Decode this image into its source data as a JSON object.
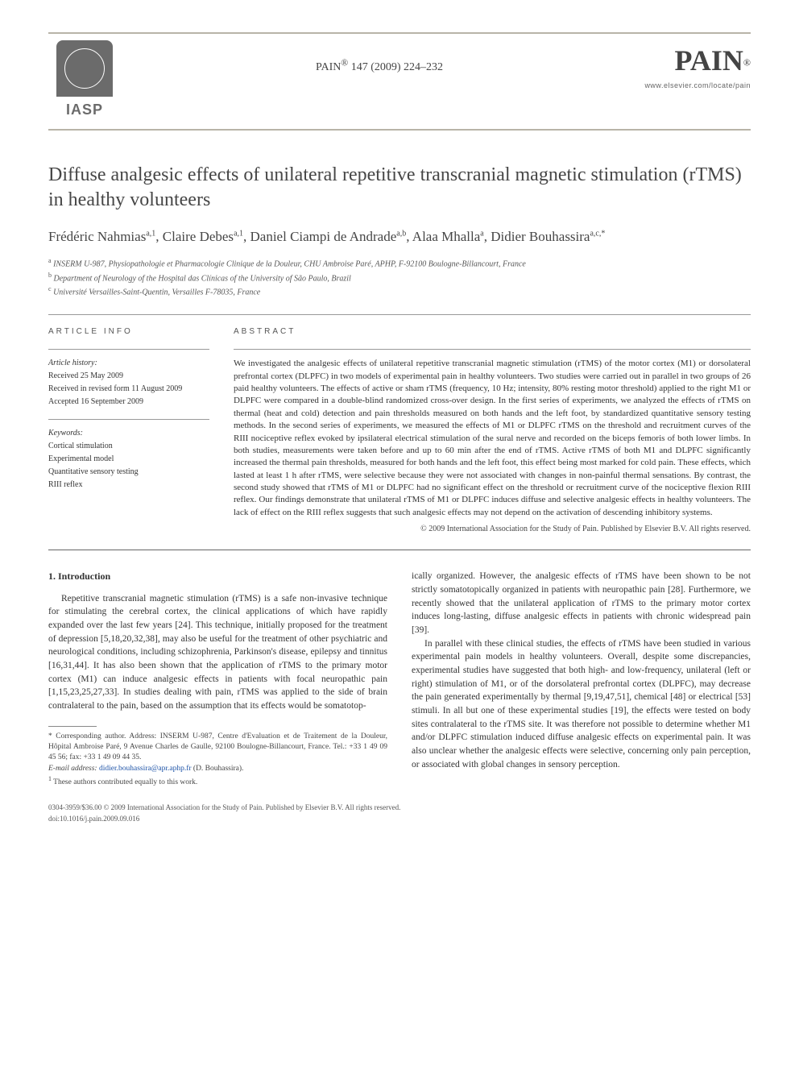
{
  "header": {
    "journal_ref_prefix": "PAIN",
    "journal_ref_reg": "®",
    "journal_ref_rest": " 147 (2009) 224–232",
    "iasp_label": "IASP",
    "pain_logo": "PAIN",
    "pain_reg": "®",
    "elsevier_url": "www.elsevier.com/locate/pain"
  },
  "title": "Diffuse analgesic effects of unilateral repetitive transcranial magnetic stimulation (rTMS) in healthy volunteers",
  "authors": [
    {
      "name": "Frédéric Nahmias",
      "sup": "a,1"
    },
    {
      "name": "Claire Debes",
      "sup": "a,1"
    },
    {
      "name": "Daniel Ciampi de Andrade",
      "sup": "a,b"
    },
    {
      "name": "Alaa Mhalla",
      "sup": "a"
    },
    {
      "name": "Didier Bouhassira",
      "sup": "a,c,*"
    }
  ],
  "affiliations": [
    {
      "sup": "a",
      "text": "INSERM U-987, Physiopathologie et Pharmacologie Clinique de la Douleur, CHU Ambroise Paré, APHP, F-92100 Boulogne-Billancourt, France"
    },
    {
      "sup": "b",
      "text": "Department of Neurology of the Hospital das Clínicas of the University of São Paulo, Brazil"
    },
    {
      "sup": "c",
      "text": "Université Versailles-Saint-Quentin, Versailles F-78035, France"
    }
  ],
  "article_info": {
    "heading": "ARTICLE INFO",
    "history_label": "Article history:",
    "history": [
      "Received 25 May 2009",
      "Received in revised form 11 August 2009",
      "Accepted 16 September 2009"
    ],
    "keywords_label": "Keywords:",
    "keywords": [
      "Cortical stimulation",
      "Experimental model",
      "Quantitative sensory testing",
      "RIII reflex"
    ]
  },
  "abstract": {
    "heading": "ABSTRACT",
    "text": "We investigated the analgesic effects of unilateral repetitive transcranial magnetic stimulation (rTMS) of the motor cortex (M1) or dorsolateral prefrontal cortex (DLPFC) in two models of experimental pain in healthy volunteers. Two studies were carried out in parallel in two groups of 26 paid healthy volunteers. The effects of active or sham rTMS (frequency, 10 Hz; intensity, 80% resting motor threshold) applied to the right M1 or DLPFC were compared in a double-blind randomized cross-over design. In the first series of experiments, we analyzed the effects of rTMS on thermal (heat and cold) detection and pain thresholds measured on both hands and the left foot, by standardized quantitative sensory testing methods. In the second series of experiments, we measured the effects of M1 or DLPFC rTMS on the threshold and recruitment curves of the RIII nociceptive reflex evoked by ipsilateral electrical stimulation of the sural nerve and recorded on the biceps femoris of both lower limbs. In both studies, measurements were taken before and up to 60 min after the end of rTMS. Active rTMS of both M1 and DLPFC significantly increased the thermal pain thresholds, measured for both hands and the left foot, this effect being most marked for cold pain. These effects, which lasted at least 1 h after rTMS, were selective because they were not associated with changes in non-painful thermal sensations. By contrast, the second study showed that rTMS of M1 or DLPFC had no significant effect on the threshold or recruitment curve of the nociceptive flexion RIII reflex. Our findings demonstrate that unilateral rTMS of M1 or DLPFC induces diffuse and selective analgesic effects in healthy volunteers. The lack of effect on the RIII reflex suggests that such analgesic effects may not depend on the activation of descending inhibitory systems.",
    "copyright": "© 2009 International Association for the Study of Pain. Published by Elsevier B.V. All rights reserved."
  },
  "body": {
    "section_number": "1.",
    "section_title": "Introduction",
    "col1_p1_a": "Repetitive transcranial magnetic stimulation (rTMS) is a safe non-invasive technique for stimulating the cerebral cortex, the clinical applications of which have rapidly expanded over the last few years ",
    "col1_p1_ref1": "[24]",
    "col1_p1_b": ". This technique, initially proposed for the treatment of depression ",
    "col1_p1_ref2": "[5,18,20,32,38]",
    "col1_p1_c": ", may also be useful for the treatment of other psychiatric and neurological conditions, including schizophrenia, Parkinson's disease, epilepsy and tinnitus ",
    "col1_p1_ref3": "[16,31,44]",
    "col1_p1_d": ". It has also been shown that the application of rTMS to the primary motor cortex (M1) can induce analgesic effects in patients with focal neuropathic pain ",
    "col1_p1_ref4": "[1,15,23,25,27,33]",
    "col1_p1_e": ". In studies dealing with pain, rTMS was applied to the side of brain contralateral to the pain, based on the assumption that its effects would be somatotop-",
    "col2_p1_a": "ically organized. However, the analgesic effects of rTMS have been shown to be not strictly somatotopically organized in patients with neuropathic pain ",
    "col2_p1_ref1": "[28]",
    "col2_p1_b": ". Furthermore, we recently showed that the unilateral application of rTMS to the primary motor cortex induces long-lasting, diffuse analgesic effects in patients with chronic widespread pain ",
    "col2_p1_ref2": "[39]",
    "col2_p1_c": ".",
    "col2_p2_a": "In parallel with these clinical studies, the effects of rTMS have been studied in various experimental pain models in healthy volunteers. Overall, despite some discrepancies, experimental studies have suggested that both high- and low-frequency, unilateral (left or right) stimulation of M1, or of the dorsolateral prefrontal cortex (DLPFC), may decrease the pain generated experimentally by thermal ",
    "col2_p2_ref1": "[9,19,47,51]",
    "col2_p2_b": ", chemical ",
    "col2_p2_ref2": "[48]",
    "col2_p2_c": " or electrical ",
    "col2_p2_ref3": "[53]",
    "col2_p2_d": " stimuli. In all but one of these experimental studies ",
    "col2_p2_ref4": "[19]",
    "col2_p2_e": ", the effects were tested on body sites contralateral to the rTMS site. It was therefore not possible to determine whether M1 and/or DLPFC stimulation induced diffuse analgesic effects on experimental pain. It was also unclear whether the analgesic effects were selective, concerning only pain perception, or associated with global changes in sensory perception."
  },
  "footnotes": {
    "corr_marker": "*",
    "corr_text": " Corresponding author. Address: INSERM U-987, Centre d'Evaluation et de Traitement de la Douleur, Hôpital Ambroise Paré, 9 Avenue Charles de Gaulle, 92100 Boulogne-Billancourt, France. Tel.: +33 1 49 09 45 56; fax: +33 1 49 09 44 35.",
    "email_label": "E-mail address: ",
    "email": "didier.bouhassira@apr.aphp.fr",
    "email_who": " (D. Bouhassira).",
    "note1_marker": "1",
    "note1_text": " These authors contributed equally to this work."
  },
  "doi": {
    "line1": "0304-3959/$36.00 © 2009 International Association for the Study of Pain. Published by Elsevier B.V. All rights reserved.",
    "line2": "doi:10.1016/j.pain.2009.09.016"
  },
  "colors": {
    "link": "#2055a8",
    "text": "#333333",
    "border": "#b8b4a8"
  }
}
